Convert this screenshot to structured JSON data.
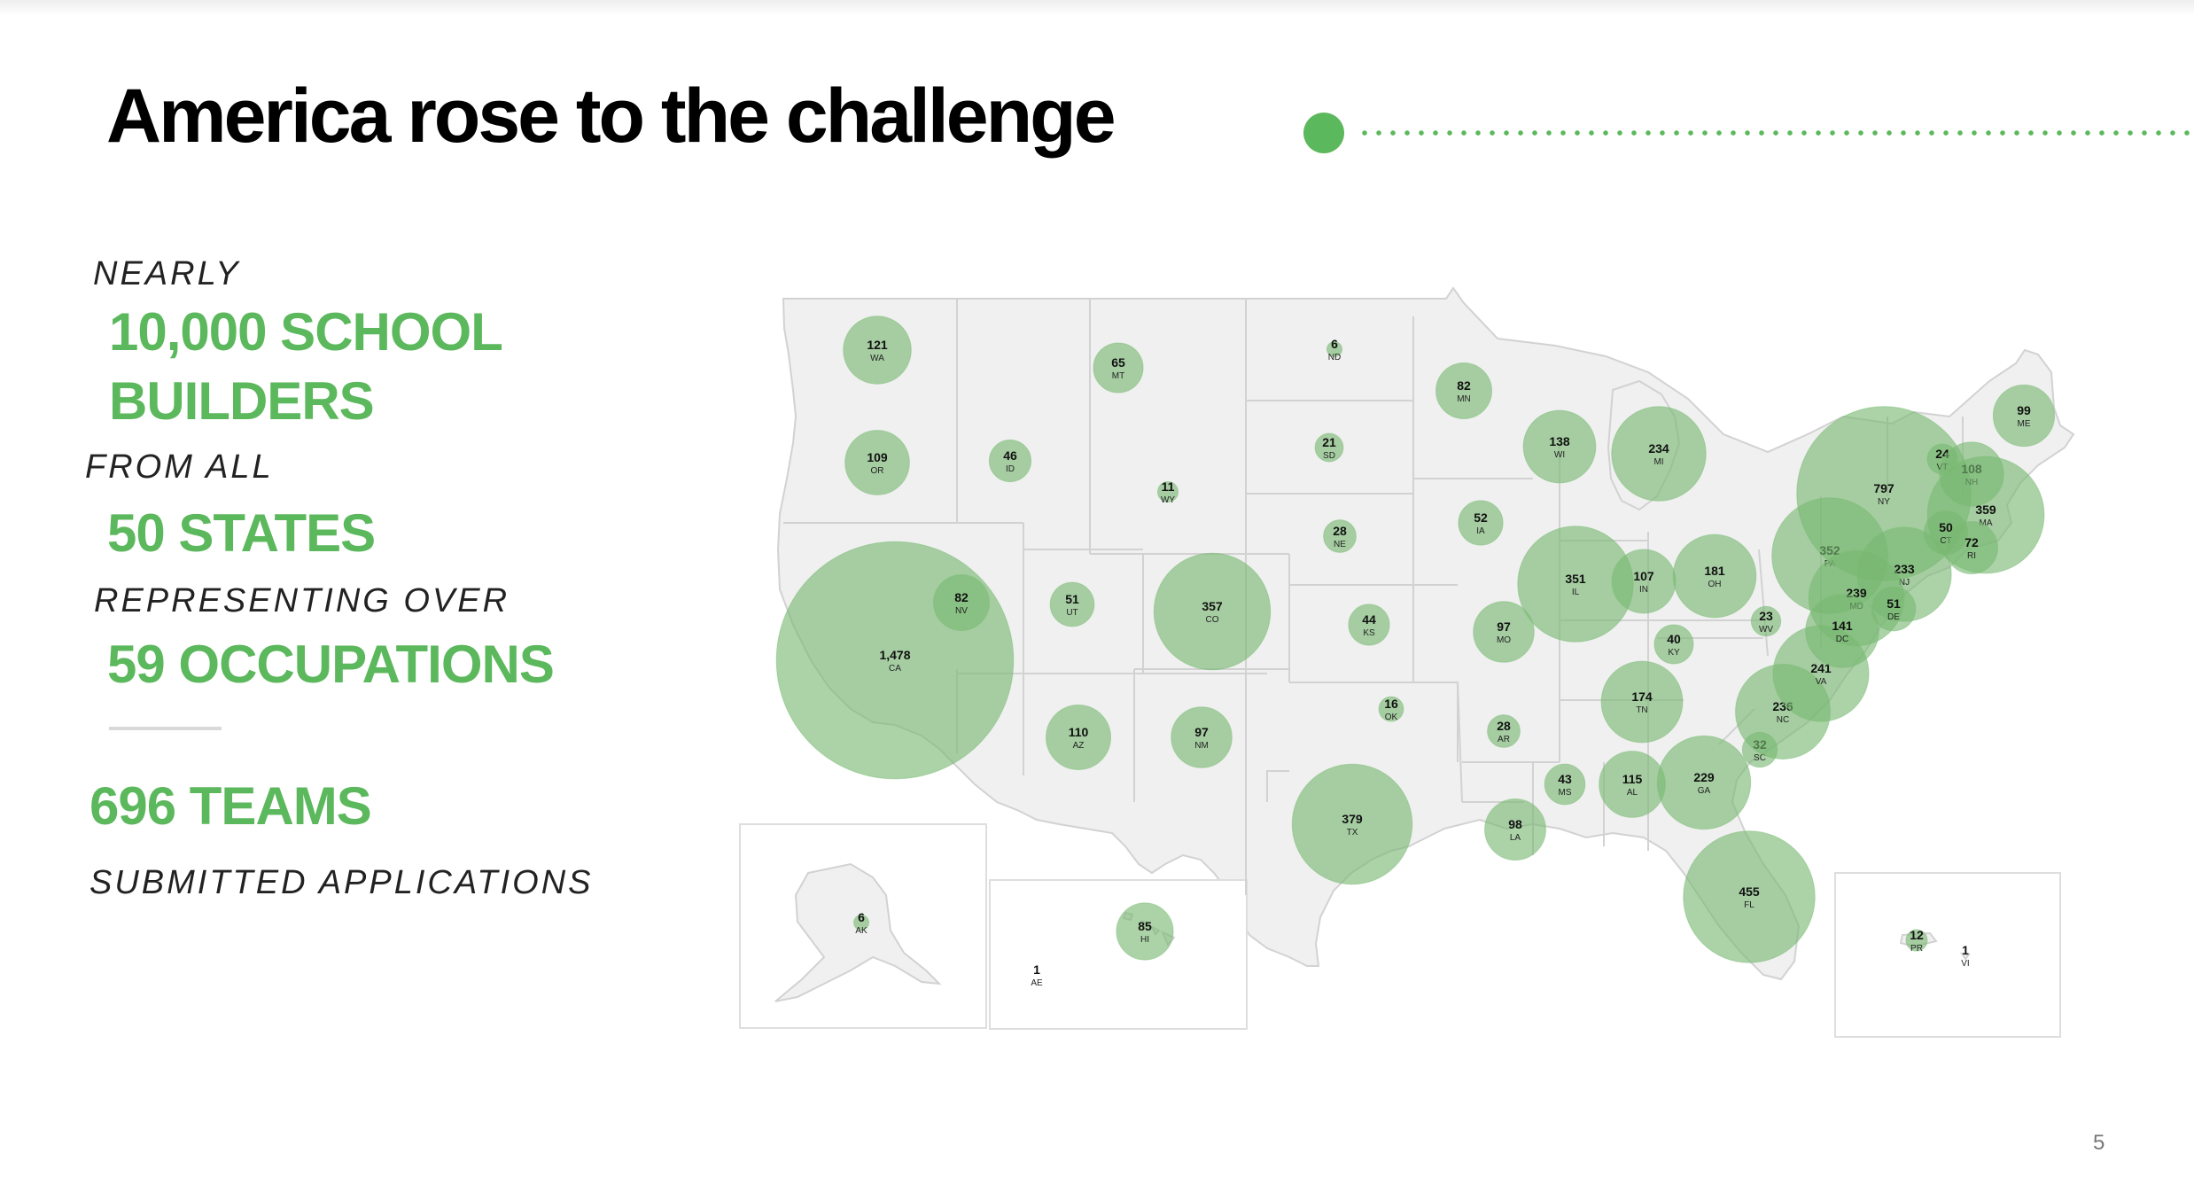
{
  "title": "America rose to the challenge",
  "stats": {
    "nearly": "NEARLY",
    "builders_line1": "10,000 SCHOOL",
    "builders_line2": "BUILDERS",
    "from_all": "FROM ALL",
    "states": "50 STATES",
    "representing": "REPRESENTING OVER",
    "occupations": "59 OCCUPATIONS",
    "teams": "696 TEAMS",
    "submitted": "SUBMITTED APPLICATIONS"
  },
  "page_number": "5",
  "colors": {
    "accent": "#5cb85c",
    "bubble": "#77b871",
    "land": "#f0f0f0",
    "border": "#d2d2d2"
  },
  "map_data": [
    {
      "abbr": "WA",
      "value": 121
    },
    {
      "abbr": "OR",
      "value": 109
    },
    {
      "abbr": "CA",
      "value": 1478
    },
    {
      "abbr": "NV",
      "value": 82
    },
    {
      "abbr": "ID",
      "value": 46
    },
    {
      "abbr": "MT",
      "value": 65
    },
    {
      "abbr": "WY",
      "value": 11
    },
    {
      "abbr": "UT",
      "value": 51
    },
    {
      "abbr": "CO",
      "value": 357
    },
    {
      "abbr": "AZ",
      "value": 110
    },
    {
      "abbr": "NM",
      "value": 97
    },
    {
      "abbr": "ND",
      "value": 6
    },
    {
      "abbr": "SD",
      "value": 21
    },
    {
      "abbr": "NE",
      "value": 28
    },
    {
      "abbr": "KS",
      "value": 44
    },
    {
      "abbr": "OK",
      "value": 16
    },
    {
      "abbr": "TX",
      "value": 379
    },
    {
      "abbr": "MN",
      "value": 82
    },
    {
      "abbr": "IA",
      "value": 52
    },
    {
      "abbr": "MO",
      "value": 97
    },
    {
      "abbr": "AR",
      "value": 28
    },
    {
      "abbr": "LA",
      "value": 98
    },
    {
      "abbr": "WI",
      "value": 138
    },
    {
      "abbr": "IL",
      "value": 351
    },
    {
      "abbr": "MI",
      "value": 234
    },
    {
      "abbr": "IN",
      "value": 107
    },
    {
      "abbr": "OH",
      "value": 181
    },
    {
      "abbr": "KY",
      "value": 40
    },
    {
      "abbr": "TN",
      "value": 174
    },
    {
      "abbr": "MS",
      "value": 43
    },
    {
      "abbr": "AL",
      "value": 115
    },
    {
      "abbr": "GA",
      "value": 229
    },
    {
      "abbr": "FL",
      "value": 455
    },
    {
      "abbr": "SC",
      "value": 32
    },
    {
      "abbr": "NC",
      "value": 236
    },
    {
      "abbr": "VA",
      "value": 241
    },
    {
      "abbr": "WV",
      "value": 23
    },
    {
      "abbr": "PA",
      "value": 352
    },
    {
      "abbr": "NY",
      "value": 797
    },
    {
      "abbr": "VT",
      "value": 24
    },
    {
      "abbr": "NH",
      "value": 108
    },
    {
      "abbr": "ME",
      "value": 99
    },
    {
      "abbr": "MA",
      "value": 359
    },
    {
      "abbr": "CT",
      "value": 50
    },
    {
      "abbr": "RI",
      "value": 72
    },
    {
      "abbr": "NJ",
      "value": 233
    },
    {
      "abbr": "MD",
      "value": 239
    },
    {
      "abbr": "DE",
      "value": 51
    },
    {
      "abbr": "DC",
      "value": 141
    },
    {
      "abbr": "AK",
      "value": 6
    },
    {
      "abbr": "HI",
      "value": 85
    },
    {
      "abbr": "AE",
      "value": 1
    },
    {
      "abbr": "PR",
      "value": 12
    },
    {
      "abbr": "VI",
      "value": 1
    }
  ]
}
